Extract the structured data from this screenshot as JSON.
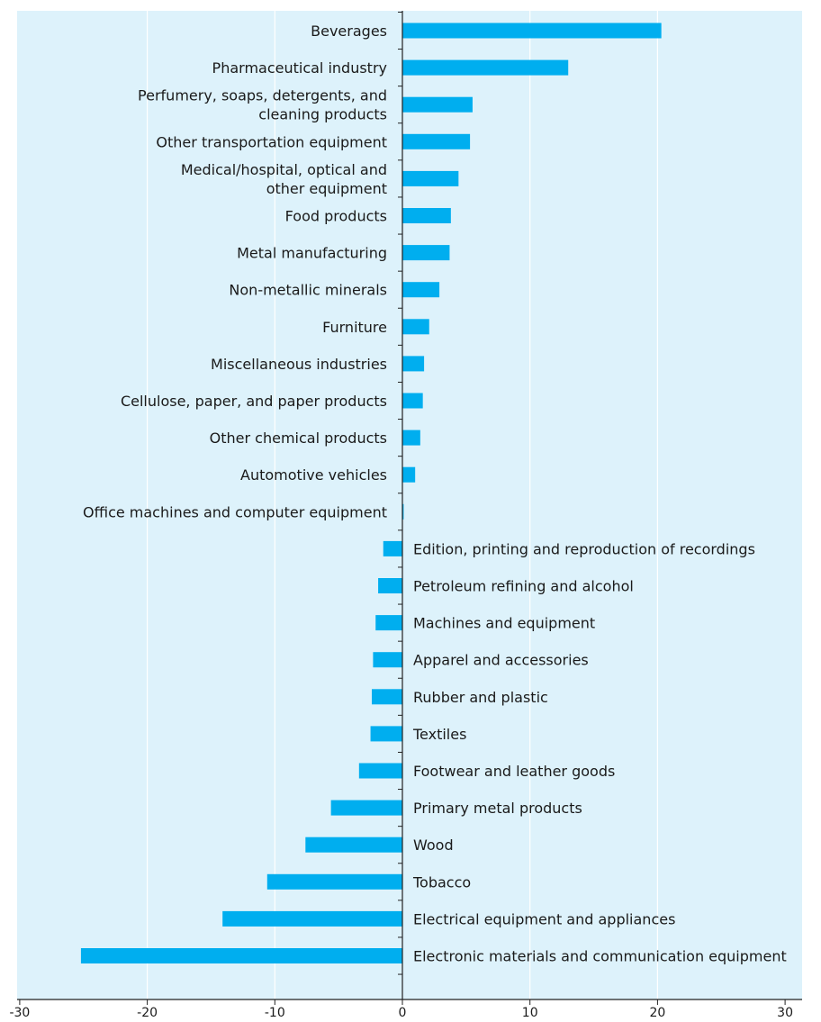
{
  "chart_data": {
    "type": "bar",
    "orientation": "horizontal",
    "categories": [
      "Beverages",
      "Pharmaceutical industry",
      "Perfumery, soaps, detergents, and cleaning products",
      "Other transportation equipment",
      "Medical/hospital, optical and other equipment",
      "Food products",
      "Metal manufacturing",
      "Non-metallic minerals",
      "Furniture",
      "Miscellaneous industries",
      "Cellulose, paper, and paper products",
      "Other chemical products",
      "Automotive vehicles",
      "Office machines and computer equipment",
      "Edition, printing and reproduction of recordings",
      "Petroleum refining and alcohol",
      "Machines and equipment",
      "Apparel and accessories",
      "Rubber and plastic",
      "Textiles",
      "Footwear and leather goods",
      "Primary metal products",
      "Wood",
      "Tobacco",
      "Electrical equipment and appliances",
      "Electronic materials and communication equipment"
    ],
    "values": [
      20.3,
      13.0,
      5.5,
      5.3,
      4.4,
      3.8,
      3.7,
      2.9,
      2.1,
      1.7,
      1.6,
      1.4,
      1.0,
      0.1,
      -1.5,
      -1.9,
      -2.1,
      -2.3,
      -2.4,
      -2.5,
      -3.4,
      -5.6,
      -7.6,
      -10.6,
      -14.1,
      -25.2
    ],
    "xlim": [
      -30,
      30
    ],
    "xticks": [
      "-30",
      "-20",
      "-10",
      "0",
      "10",
      "20",
      "30"
    ],
    "grid": true,
    "colors": {
      "bar": "#00AEEF",
      "background": "#DDF2FB",
      "grid": "#FFFFFF",
      "axis": "#222222"
    }
  }
}
